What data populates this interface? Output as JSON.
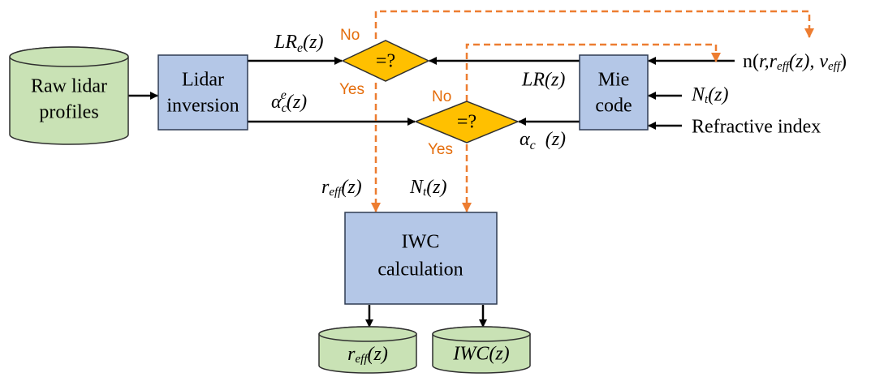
{
  "nodes": {
    "raw_lidar": [
      "Raw lidar",
      "profiles"
    ],
    "lidar_inversion": [
      "Lidar",
      "inversion"
    ],
    "compare_lr": "=?",
    "compare_alpha": "=?",
    "mie_code": [
      "Mie",
      "code"
    ],
    "iwc_calculation": [
      "IWC",
      "calculation"
    ],
    "output_reff": [
      "r",
      "eff",
      "(z)"
    ],
    "output_iwc": "IWC(z)"
  },
  "labels": {
    "lr_e": [
      "LR",
      "e",
      "(z)"
    ],
    "alpha_ce": [
      "α",
      "c",
      "e",
      "(z)"
    ],
    "lr": "LR(z)",
    "alpha_c": [
      "α",
      "c",
      "(z)"
    ],
    "size_dist": [
      "n(",
      "r,r",
      "eff",
      "(z), ν",
      "eff",
      ")"
    ],
    "nt_in": [
      "N",
      "t",
      "(z)"
    ],
    "refractive_index": "Refractive index",
    "reff": [
      "r",
      "eff",
      "(z)"
    ],
    "nt": [
      "N",
      "t",
      "(z)"
    ],
    "no_1": "No",
    "yes_1": "Yes",
    "no_2": "No",
    "yes_2": "Yes"
  }
}
